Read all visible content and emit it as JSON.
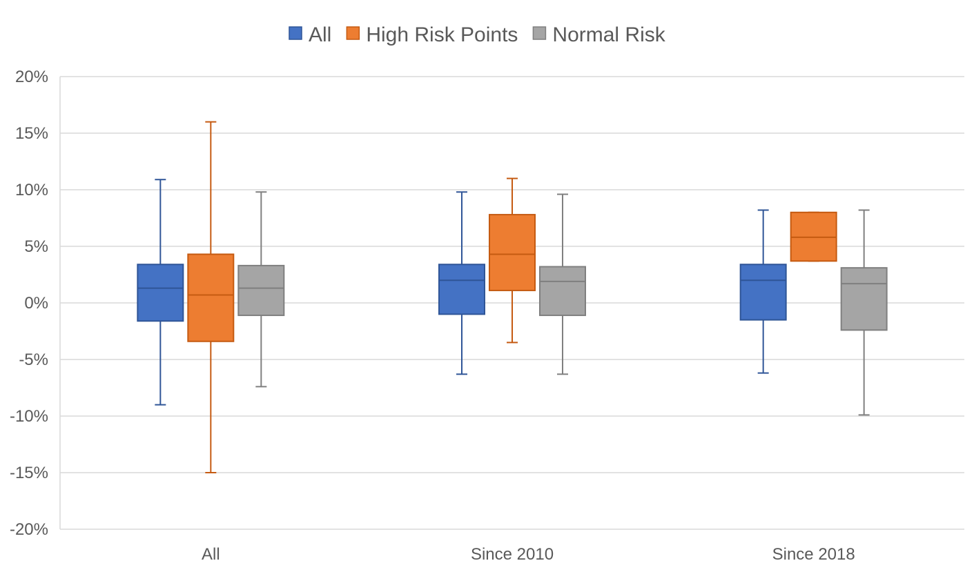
{
  "chart_data": {
    "type": "box",
    "categories": [
      "All",
      "Since 2010",
      "Since 2018"
    ],
    "y_ticks": [
      "20%",
      "15%",
      "10%",
      "5%",
      "0%",
      "-5%",
      "-10%",
      "-15%",
      "-20%"
    ],
    "ylim": [
      -20,
      20
    ],
    "y_unit": "%",
    "grid": true,
    "legend_position": "top",
    "series": [
      {
        "name": "All",
        "color": "#4472C4",
        "edge": "#2F5597",
        "boxes": [
          {
            "min": -9.0,
            "q1": -1.6,
            "median": 1.3,
            "q3": 3.4,
            "max": 10.9
          },
          {
            "min": -6.3,
            "q1": -1.0,
            "median": 2.0,
            "q3": 3.4,
            "max": 9.8
          },
          {
            "min": -6.2,
            "q1": -1.5,
            "median": 2.0,
            "q3": 3.4,
            "max": 8.2
          }
        ]
      },
      {
        "name": "High Risk Points",
        "color": "#ED7D31",
        "edge": "#C55A11",
        "boxes": [
          {
            "min": -15.0,
            "q1": -3.4,
            "median": 0.7,
            "q3": 4.3,
            "max": 16.0
          },
          {
            "min": -3.5,
            "q1": 1.1,
            "median": 4.3,
            "q3": 7.8,
            "max": 11.0
          },
          {
            "min": 3.7,
            "q1": 3.7,
            "median": 5.8,
            "q3": 8.0,
            "max": 8.0
          }
        ]
      },
      {
        "name": "Normal Risk",
        "color": "#A5A5A5",
        "edge": "#7F7F7F",
        "boxes": [
          {
            "min": -7.4,
            "q1": -1.1,
            "median": 1.3,
            "q3": 3.3,
            "max": 9.8
          },
          {
            "min": -6.3,
            "q1": -1.1,
            "median": 1.9,
            "q3": 3.2,
            "max": 9.6
          },
          {
            "min": -9.9,
            "q1": -2.4,
            "median": 1.7,
            "q3": 3.1,
            "max": 8.2
          }
        ]
      }
    ]
  }
}
